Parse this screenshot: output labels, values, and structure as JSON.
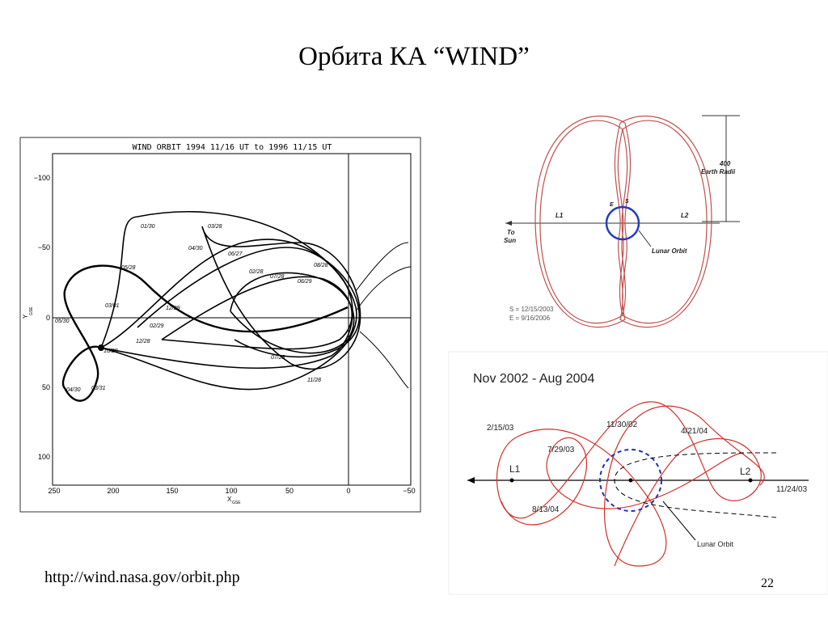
{
  "header": {
    "title": "Орбита КА “WIND”"
  },
  "figure_1": {
    "title": "WIND ORBIT 1994 11/16 UT  to 1996 11/15 UT",
    "y_label": "Y",
    "y_label_sub": "GSE",
    "x_label": "X",
    "x_label_sub": "GSE",
    "y_ticks": [
      "−100",
      "−50",
      "0",
      "50",
      "100"
    ],
    "x_ticks": [
      "250",
      "200",
      "150",
      "100",
      "50",
      "0",
      "−50"
    ],
    "dates": [
      "01/30",
      "03/28",
      "04/30",
      "06/27",
      "05/28",
      "08/28",
      "07/28",
      "11/28",
      "06/29",
      "03/01",
      "12/29",
      "02/29",
      "12/28",
      "07/28",
      "05/30",
      "03/31",
      "04/30",
      "02/28",
      "10/28"
    ]
  },
  "figure_2": {
    "height": "400",
    "height_unit": "Earth Radii",
    "l1": "L1",
    "l2": "L2",
    "to_sun_1": "To",
    "to_sun_2": "Sun",
    "lunar_orbit": "Lunar Orbit",
    "s": "S",
    "e": "E",
    "legend_s": "S = 12/15/2003",
    "legend_e": "E = 9/16/2006"
  },
  "figure_3": {
    "title": "Nov 2002 - Aug 2004",
    "dates": [
      "2/15/03",
      "7/29/03",
      "11/30/02",
      "4/21/04",
      "11/24/03",
      "8/13/04"
    ],
    "l1": "L1",
    "l2": "L2",
    "lunar_orbit": "Lunar Orbit"
  },
  "footer": {
    "url": "http://wind.nasa.gov/orbit.php",
    "page": "22"
  }
}
